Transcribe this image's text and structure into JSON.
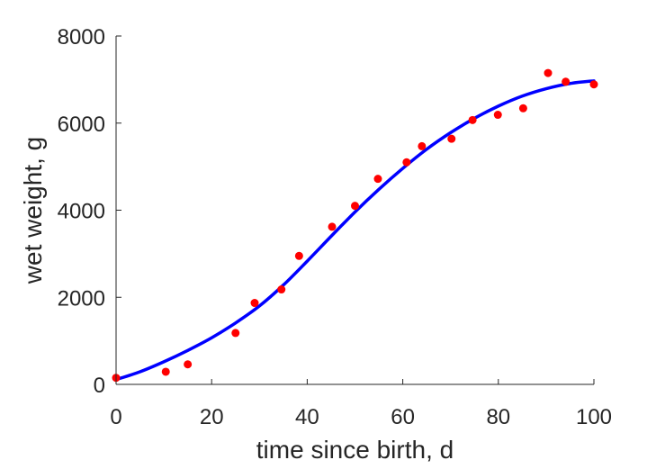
{
  "chart_data": {
    "type": "scatter",
    "title": "",
    "xlabel": "time since birth, d",
    "ylabel": "wet weight, g",
    "xlim": [
      0,
      100
    ],
    "ylim": [
      0,
      8000
    ],
    "xticks": [
      0,
      20,
      40,
      60,
      80,
      100
    ],
    "yticks": [
      0,
      2000,
      4000,
      6000,
      8000
    ],
    "xtick_labels": [
      "0",
      "20",
      "40",
      "60",
      "80",
      "100"
    ],
    "ytick_labels": [
      "0",
      "2000",
      "4000",
      "6000",
      "8000"
    ],
    "grid": false,
    "legend": "none",
    "series": [
      {
        "kind": "points",
        "color": "#ff0000",
        "x": [
          0,
          10.4,
          15,
          25,
          29,
          34.6,
          38.3,
          45.2,
          50,
          54.8,
          60.8,
          64,
          70.2,
          74.6,
          79.9,
          85.2,
          90.4,
          94.1,
          100
        ],
        "y": [
          150,
          290,
          460,
          1180,
          1870,
          2180,
          2950,
          3620,
          4100,
          4720,
          5100,
          5470,
          5640,
          6070,
          6190,
          6340,
          7150,
          6950,
          6890
        ]
      },
      {
        "kind": "line",
        "color": "#0000ff",
        "x": [
          0,
          5,
          10,
          15,
          20,
          25,
          30,
          35,
          40,
          45,
          50,
          55,
          60,
          65,
          70,
          75,
          80,
          85,
          90,
          95,
          100
        ],
        "y": [
          110,
          290,
          520,
          780,
          1070,
          1410,
          1800,
          2280,
          2830,
          3400,
          3960,
          4480,
          4960,
          5400,
          5780,
          6110,
          6390,
          6620,
          6790,
          6910,
          6970
        ]
      }
    ]
  }
}
